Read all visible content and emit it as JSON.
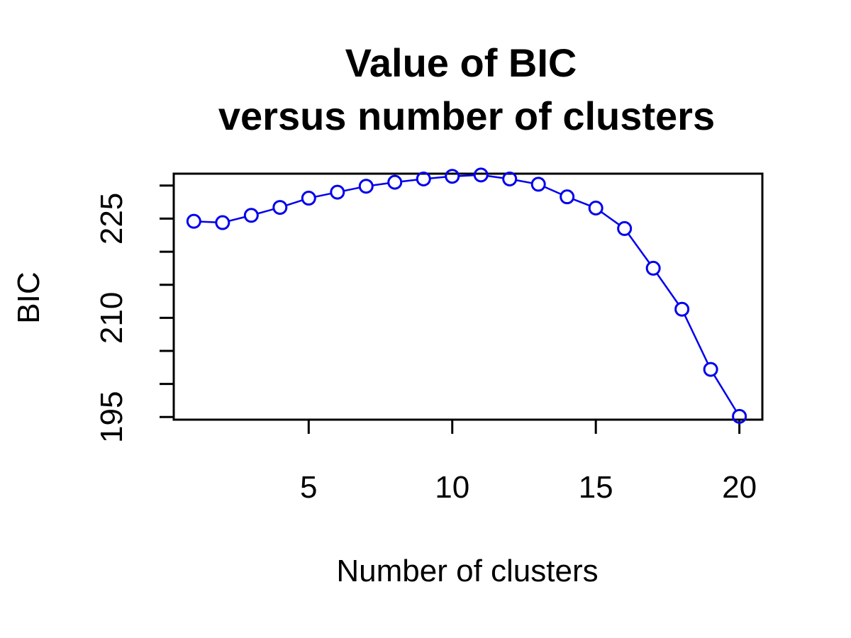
{
  "chart_data": {
    "type": "line",
    "title_lines": [
      "Value of BIC",
      "versus number of clusters"
    ],
    "xlabel": "Number of clusters",
    "ylabel": "BIC",
    "x": [
      1,
      2,
      3,
      4,
      5,
      6,
      7,
      8,
      9,
      10,
      11,
      12,
      13,
      14,
      15,
      16,
      17,
      18,
      19,
      20
    ],
    "y": [
      224.6,
      224.4,
      225.5,
      226.7,
      228.1,
      229.0,
      229.9,
      230.5,
      231.0,
      231.4,
      231.6,
      231.0,
      230.2,
      228.3,
      226.6,
      223.5,
      217.5,
      211.3,
      202.2,
      195.1
    ],
    "xlim": [
      0.3,
      20.8
    ],
    "ylim": [
      194.6,
      231.8
    ],
    "x_ticks": [
      5,
      10,
      15,
      20
    ],
    "x_tick_labels": [
      "5",
      "10",
      "15",
      "20"
    ],
    "y_ticks": [
      195,
      200,
      205,
      210,
      215,
      220,
      225,
      230
    ],
    "y_tick_labels": [
      "195",
      "",
      "",
      "210",
      "",
      "",
      "225",
      ""
    ],
    "series_color": "#0000ee",
    "marker": "open-circle",
    "grid": false,
    "legend": "none"
  }
}
